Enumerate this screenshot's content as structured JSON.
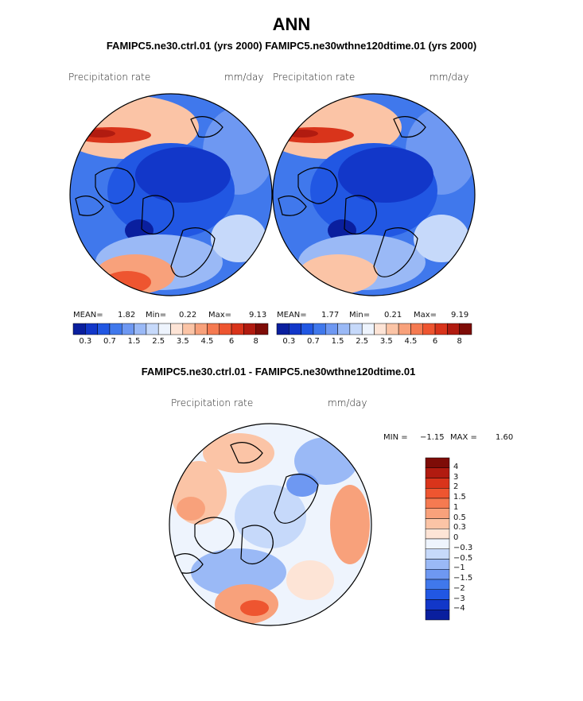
{
  "title": "ANN",
  "subtitle": "FAMIPC5.ne30.ctrl.01 (yrs 2000)   FAMIPC5.ne30wthne120dtime.01 (yrs 2000)",
  "diff_title": "FAMIPC5.ne30.ctrl.01 - FAMIPC5.ne30wthne120dtime.01",
  "chart_data": [
    {
      "type": "heatmap",
      "panel": "left",
      "variable": "Precipitation rate",
      "units": "mm/day",
      "stats": {
        "mean": "1.82",
        "min": "0.22",
        "max": "9.13"
      },
      "mean_label": "MEAN=",
      "min_label": "Min=",
      "max_label": "Max=",
      "levels": [
        "0.3",
        "0.7",
        "1.5",
        "2.5",
        "3.5",
        "4.5",
        "6",
        "8"
      ]
    },
    {
      "type": "heatmap",
      "panel": "right",
      "variable": "Precipitation rate",
      "units": "mm/day",
      "stats": {
        "mean": "1.77",
        "min": "0.21",
        "max": "9.19"
      },
      "mean_label": "MEAN=",
      "min_label": "Min=",
      "max_label": "Max=",
      "levels": [
        "0.3",
        "0.7",
        "1.5",
        "2.5",
        "3.5",
        "4.5",
        "6",
        "8"
      ]
    },
    {
      "type": "heatmap",
      "panel": "difference",
      "variable": "Precipitation rate",
      "units": "mm/day",
      "stats": {
        "min": "−1.15",
        "max": "1.60"
      },
      "min_label": "MIN =",
      "max_label": "MAX =",
      "levels": [
        "4",
        "3",
        "2",
        "1.5",
        "1",
        "0.5",
        "0.3",
        "0",
        "−0.3",
        "−0.5",
        "−1",
        "−1.5",
        "−2",
        "−3",
        "−4"
      ]
    }
  ],
  "colors": {
    "abs_scale": [
      "#0a1f9e",
      "#1237c9",
      "#2157e3",
      "#4078ec",
      "#6e98f2",
      "#9ab9f6",
      "#c6d9fa",
      "#eef4fd",
      "#fde4d6",
      "#fbc4a6",
      "#f8a17b",
      "#f57a51",
      "#ee5530",
      "#d9341b",
      "#b11b10",
      "#7e0c07"
    ],
    "diff_scale": [
      "#7e0c07",
      "#b11b10",
      "#d9341b",
      "#ee5530",
      "#f57a51",
      "#f8a17b",
      "#fbc4a6",
      "#fde4d6",
      "#eef4fd",
      "#c6d9fa",
      "#9ab9f6",
      "#6e98f2",
      "#4078ec",
      "#2157e3",
      "#1237c9",
      "#0a1f9e"
    ]
  }
}
